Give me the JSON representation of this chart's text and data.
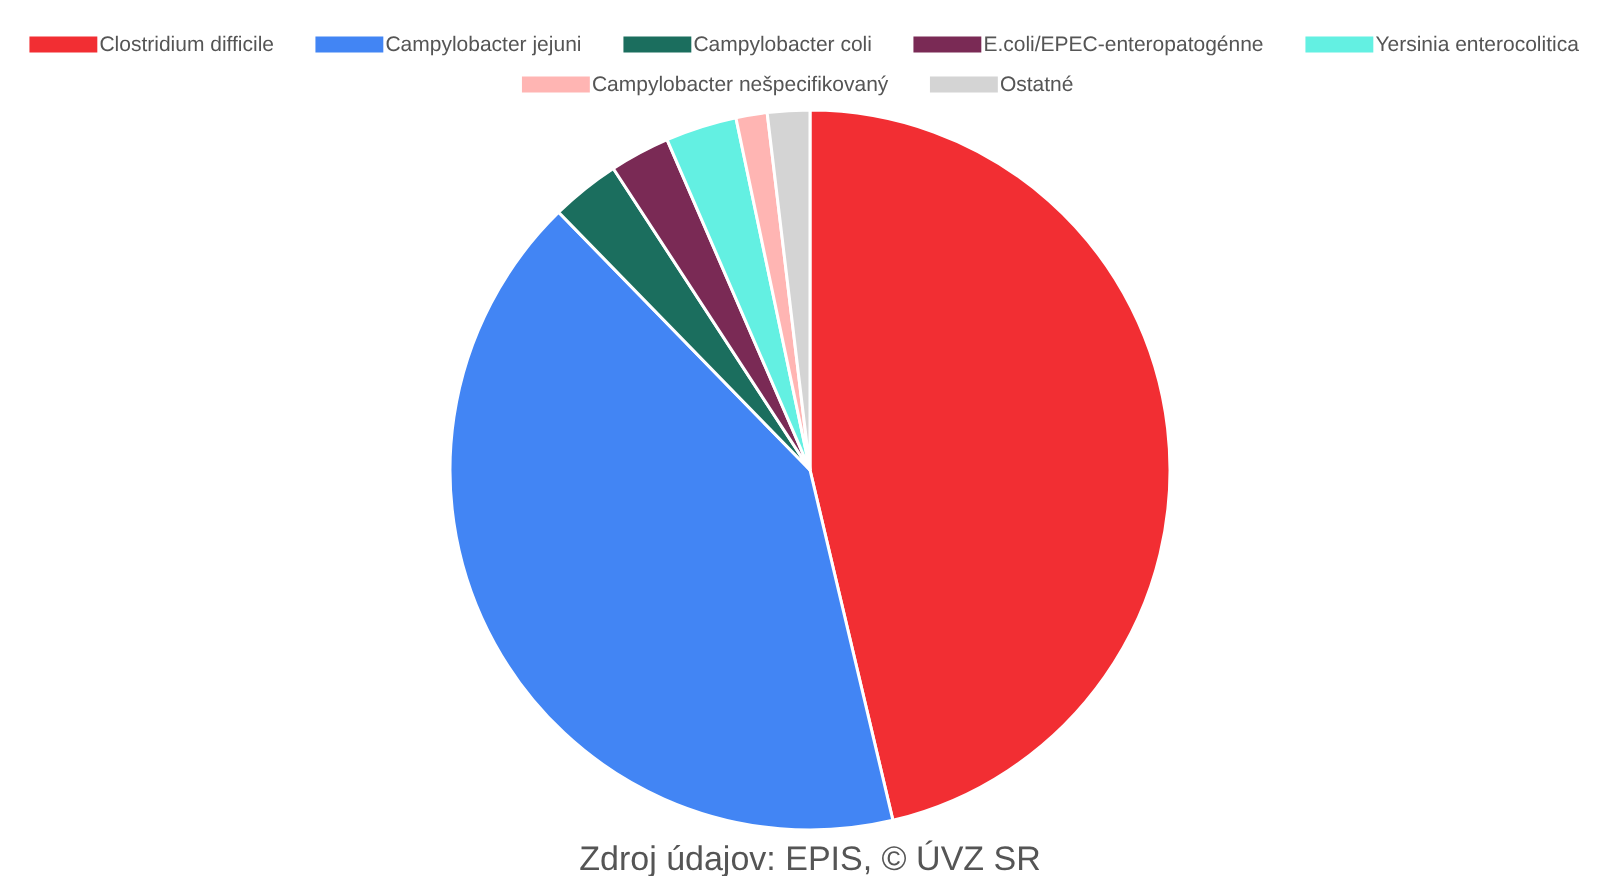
{
  "chart_data": {
    "type": "pie",
    "categories": [
      "Clostridium difficile",
      "Campylobacter jejuni",
      "Campylobacter coli",
      "E.coli/EPEC-enteropatogénne",
      "Yersinia enterocolitica",
      "Campylobacter nešpecifikovaný",
      "Ostatné"
    ],
    "values": [
      46.3,
      41.4,
      3.1,
      2.7,
      3.2,
      1.4,
      1.9
    ],
    "colors": [
      "#f22e33",
      "#4285f4",
      "#1b6e5e",
      "#7a2a55",
      "#63f0e2",
      "#ffb5b3",
      "#d4d4d4"
    ],
    "legend": "top",
    "annotations": [
      "Zdroj údajov: EPIS, © ÚVZ SR"
    ]
  }
}
